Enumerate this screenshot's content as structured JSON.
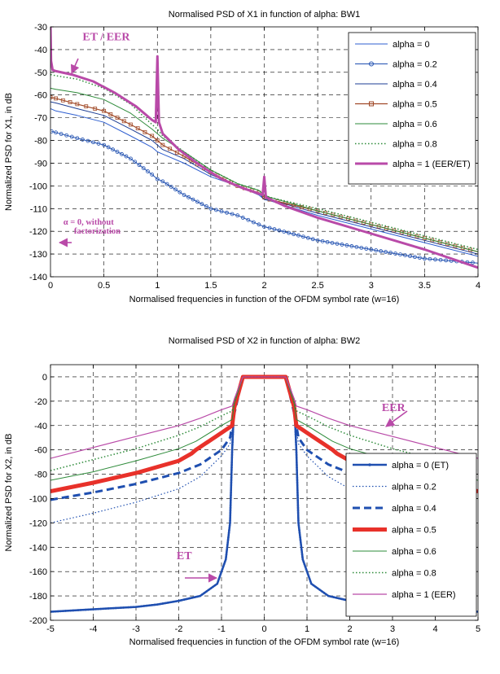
{
  "chart_data": [
    {
      "type": "line",
      "title": "Normalised PSD of X1 in function of alpha: BW1",
      "xlabel": "Normalised frequencies in function of the OFDM symbol rate (w=16)",
      "ylabel": "Normalized PSD for X1, in dB",
      "xlim": [
        0,
        4
      ],
      "ylim": [
        -140,
        -30
      ],
      "xticks": [
        0,
        0.5,
        1,
        1.5,
        2,
        2.5,
        3,
        3.5,
        4
      ],
      "xticklabels": [
        "0",
        "0.5",
        "1",
        "1.5",
        "2",
        "2.5",
        "3",
        "3.5",
        "4"
      ],
      "yticks": [
        -140,
        -130,
        -120,
        -110,
        -100,
        -90,
        -80,
        -70,
        -60,
        -50,
        -40,
        -30
      ],
      "yticklabels": [
        "-140",
        "-130",
        "-120",
        "-110",
        "-100",
        "-90",
        "-80",
        "-70",
        "-60",
        "-50",
        "-40",
        "-30"
      ],
      "grid": true,
      "legend_position": "top-right",
      "annotations": [
        {
          "text": "ET / EER",
          "x": 0.3,
          "y": -36
        },
        {
          "text": "α = 0, without",
          "x": 0.12,
          "y": -117
        },
        {
          "text": "factorization",
          "x": 0.22,
          "y": -121
        }
      ],
      "series": [
        {
          "name": "alpha = 0",
          "color": "#2f5fd0",
          "width": 1,
          "marker": "none",
          "dash": "solid",
          "x": [
            0,
            0.05,
            0.25,
            0.5,
            0.75,
            0.95,
            1.0,
            1.05,
            1.25,
            1.5,
            1.75,
            1.95,
            2.0,
            2.05,
            2.5,
            3.0,
            3.5,
            4.0
          ],
          "y": [
            -66,
            -67,
            -69,
            -72,
            -78,
            -83,
            -85,
            -86,
            -90,
            -96,
            -100,
            -104,
            -106,
            -106.5,
            -113,
            -119,
            -125,
            -131
          ]
        },
        {
          "name": "alpha = 0.2",
          "color": "#1f4fb0",
          "width": 1,
          "marker": "circle",
          "dash": "solid",
          "x": [
            0.01,
            0.05,
            0.25,
            0.5,
            0.75,
            0.95,
            1.0,
            1.05,
            1.25,
            1.5,
            1.75,
            1.95,
            2.0,
            2.05,
            2.5,
            3.0,
            3.5,
            4.0
          ],
          "y": [
            -76,
            -76.5,
            -79,
            -82,
            -88,
            -95,
            -97,
            -98,
            -104,
            -110,
            -113,
            -117,
            -118,
            -118.5,
            -124,
            -128,
            -132,
            -134
          ]
        },
        {
          "name": "alpha = 0.4",
          "color": "#1d3e94",
          "width": 1,
          "marker": "none",
          "dash": "solid",
          "x": [
            0,
            0.05,
            0.25,
            0.5,
            0.75,
            0.95,
            1.0,
            1.05,
            1.25,
            1.5,
            1.75,
            1.95,
            2.0,
            2.05,
            2.5,
            3.0,
            3.5,
            4.0
          ],
          "y": [
            -63,
            -63.5,
            -66,
            -69,
            -75,
            -80,
            -82,
            -84,
            -88,
            -95,
            -100,
            -103,
            -106,
            -106,
            -112,
            -118,
            -124,
            -130
          ]
        },
        {
          "name": "alpha = 0.5",
          "color": "#a14a28",
          "width": 1.2,
          "marker": "square",
          "dash": "solid",
          "x": [
            0,
            0.05,
            0.25,
            0.5,
            0.75,
            0.95,
            1.0,
            1.05,
            1.25,
            1.5,
            1.75,
            1.95,
            2.0,
            2.05,
            2.5,
            3.0,
            3.5,
            4.0
          ],
          "y": [
            -61,
            -61.5,
            -64,
            -67,
            -73,
            -78,
            -80,
            -82,
            -87,
            -94,
            -100,
            -103,
            -105,
            -106,
            -111,
            -117,
            -123,
            -129
          ]
        },
        {
          "name": "alpha = 0.6",
          "color": "#2e8b3a",
          "width": 1,
          "marker": "none",
          "dash": "solid",
          "x": [
            0,
            0.05,
            0.25,
            0.5,
            0.75,
            0.95,
            1.0,
            1.05,
            1.25,
            1.5,
            1.75,
            1.95,
            2.0,
            2.05,
            2.5,
            3.0,
            3.5,
            4.0
          ],
          "y": [
            -57,
            -57.5,
            -59,
            -62,
            -68,
            -75,
            -77,
            -79,
            -85,
            -93,
            -99,
            -102,
            -104,
            -105,
            -111,
            -117,
            -123,
            -129
          ]
        },
        {
          "name": "alpha = 0.8",
          "color": "#2e8b3a",
          "width": 1.5,
          "marker": "none",
          "dash": "dotted",
          "x": [
            0,
            0.05,
            0.25,
            0.5,
            0.75,
            0.95,
            1.0,
            1.05,
            1.25,
            1.5,
            1.75,
            1.95,
            2.0,
            2.05,
            2.5,
            3.0,
            3.5,
            4.0
          ],
          "y": [
            -51,
            -51.5,
            -53,
            -57,
            -64,
            -73,
            -75,
            -78,
            -85,
            -93,
            -99,
            -102,
            -104,
            -105,
            -110,
            -116,
            -122,
            -128
          ]
        },
        {
          "name": "alpha = 1 (EER/ET)",
          "color": "#b94aa8",
          "width": 3,
          "marker": "none",
          "dash": "solid",
          "x": [
            0,
            0.005,
            0.02,
            0.05,
            0.2,
            0.4,
            0.6,
            0.8,
            0.95,
            0.985,
            1.0,
            1.015,
            1.05,
            1.2,
            1.4,
            1.6,
            1.8,
            1.985,
            2.0,
            2.015,
            2.2,
            2.5,
            3.0,
            3.5,
            4.0
          ],
          "y": [
            -30,
            -45,
            -49,
            -49.5,
            -51,
            -54,
            -59,
            -65,
            -71,
            -72,
            -43,
            -72,
            -77,
            -84,
            -91,
            -97,
            -101,
            -104,
            -96,
            -105,
            -109,
            -114,
            -121,
            -128,
            -136
          ]
        }
      ]
    },
    {
      "type": "line",
      "title": "Normalised PSD of X2 in function of alpha: BW2",
      "xlabel": "Normalised frequencies in function of the OFDM symbol rate (w=16)",
      "ylabel": "Normalized PSD for X2, in dB",
      "xlim": [
        -5,
        5
      ],
      "ylim": [
        -200,
        10
      ],
      "xticks": [
        -5,
        -4,
        -3,
        -2,
        -1,
        0,
        1,
        2,
        3,
        4,
        5
      ],
      "xticklabels": [
        "-5",
        "-4",
        "-3",
        "-2",
        "-1",
        "0",
        "1",
        "2",
        "3",
        "4",
        "5"
      ],
      "yticks": [
        -200,
        -180,
        -160,
        -140,
        -120,
        -100,
        -80,
        -60,
        -40,
        -20,
        0
      ],
      "yticklabels": [
        "-200",
        "-180",
        "-160",
        "-140",
        "-120",
        "-100",
        "-80",
        "-60",
        "-40",
        "-20",
        "0"
      ],
      "grid": true,
      "legend_position": "bottom-right",
      "annotations": [
        {
          "text": "EER",
          "x": 2.75,
          "y": -28
        },
        {
          "text": "ET",
          "x": -2.05,
          "y": -150
        }
      ],
      "series": [
        {
          "name": "alpha = 0 (ET)",
          "color": "#1f4fb0",
          "width": 2.5,
          "marker": "point",
          "dash": "solid",
          "x": [
            -5,
            -4,
            -3,
            -2.5,
            -2,
            -1.5,
            -1.1,
            -0.9,
            -0.8,
            -0.75,
            -0.7,
            -0.5,
            0.5,
            0.7,
            0.75,
            0.8,
            0.9,
            1.1,
            1.5,
            2,
            2.5,
            3,
            4,
            5
          ],
          "y": [
            -193,
            -191,
            -189,
            -187,
            -184,
            -180,
            -170,
            -150,
            -120,
            -60,
            -20,
            0,
            0,
            -20,
            -60,
            -120,
            -150,
            -170,
            -180,
            -184,
            -187,
            -189,
            -191,
            -193
          ]
        },
        {
          "name": "alpha = 0.2",
          "color": "#1f4fb0",
          "width": 1.2,
          "marker": "none",
          "dash": "dotted",
          "x": [
            -5,
            -4,
            -3,
            -2,
            -1.5,
            -1,
            -0.8,
            -0.7,
            -0.5,
            0.5,
            0.7,
            0.8,
            1,
            1.5,
            2,
            3,
            4,
            5
          ],
          "y": [
            -120,
            -112,
            -103,
            -92,
            -82,
            -65,
            -55,
            -30,
            0,
            0,
            -30,
            -55,
            -65,
            -82,
            -92,
            -103,
            -112,
            -120
          ]
        },
        {
          "name": "alpha = 0.4",
          "color": "#1f4fb0",
          "width": 3,
          "marker": "none",
          "dash": "dashed",
          "x": [
            -5,
            -4,
            -3,
            -2,
            -1.5,
            -1,
            -0.8,
            -0.7,
            -0.5,
            0.5,
            0.7,
            0.8,
            1,
            1.5,
            2,
            3,
            4,
            5
          ],
          "y": [
            -101,
            -95,
            -88,
            -79,
            -72,
            -60,
            -50,
            -30,
            0,
            0,
            -30,
            -50,
            -60,
            -72,
            -79,
            -88,
            -95,
            -101
          ]
        },
        {
          "name": "alpha = 0.5",
          "color": "#e8312a",
          "width": 5,
          "marker": "none",
          "dash": "solid",
          "x": [
            -5,
            -4,
            -3,
            -2,
            -1.7,
            -1.6,
            -1,
            -0.75,
            -0.7,
            -0.5,
            0.5,
            0.7,
            0.75,
            1,
            1.6,
            1.7,
            2,
            3,
            4,
            5
          ],
          "y": [
            -94,
            -87,
            -79,
            -69,
            -63,
            -60,
            -46,
            -40,
            -25,
            0,
            0,
            -25,
            -40,
            -46,
            -60,
            -63,
            -69,
            -79,
            -87,
            -94
          ]
        },
        {
          "name": "alpha = 0.6",
          "color": "#2e8b3a",
          "width": 1,
          "marker": "none",
          "dash": "solid",
          "x": [
            -5,
            -4,
            -3,
            -2,
            -1.6,
            -1,
            -0.75,
            -0.7,
            -0.5,
            0.5,
            0.7,
            0.75,
            1,
            1.6,
            2,
            3,
            4,
            5
          ],
          "y": [
            -85,
            -78,
            -69,
            -59,
            -53,
            -40,
            -35,
            -22,
            0,
            0,
            -22,
            -35,
            -40,
            -53,
            -59,
            -69,
            -78,
            -85
          ]
        },
        {
          "name": "alpha = 0.8",
          "color": "#2e8b3a",
          "width": 1.5,
          "marker": "none",
          "dash": "dotted",
          "x": [
            -5,
            -4,
            -3,
            -2,
            -1.5,
            -1,
            -0.75,
            -0.7,
            -0.5,
            0.5,
            0.7,
            0.75,
            1,
            1.5,
            2,
            3,
            4,
            5
          ],
          "y": [
            -77,
            -68,
            -59,
            -48,
            -41,
            -32,
            -28,
            -20,
            0,
            0,
            -20,
            -28,
            -32,
            -41,
            -48,
            -59,
            -68,
            -77
          ]
        },
        {
          "name": "alpha = 1 (EER)",
          "color": "#b94aa8",
          "width": 1.2,
          "marker": "none",
          "dash": "solid",
          "x": [
            -5,
            -4,
            -3,
            -2,
            -1.5,
            -1,
            -0.75,
            -0.7,
            -0.5,
            0.5,
            0.7,
            0.75,
            1,
            1.5,
            2,
            3,
            4,
            5
          ],
          "y": [
            -67,
            -58,
            -49,
            -40,
            -34,
            -27,
            -24,
            -18,
            0,
            0,
            -18,
            -24,
            -27,
            -34,
            -40,
            -49,
            -58,
            -67
          ]
        }
      ]
    }
  ]
}
